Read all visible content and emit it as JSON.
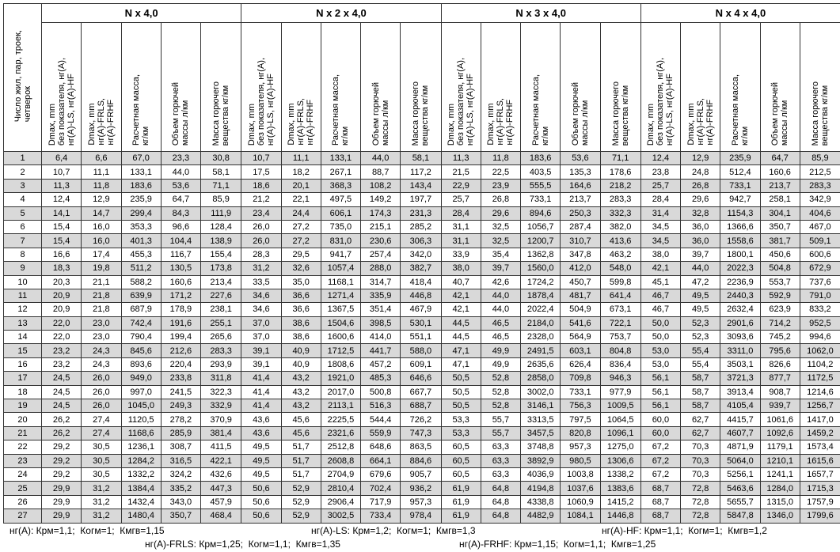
{
  "table": {
    "row_header": [
      "Число жил, пар, троек,",
      "четверок"
    ],
    "groups": [
      "N x 4,0",
      "N x 2 x 4,0",
      "N x 3 x 4,0",
      "N x 4 x 4,0"
    ],
    "columns": [
      [
        "Dmax, mm",
        "без показателя, нг(А),",
        "нг(А)-LS, нг(А)-HF"
      ],
      [
        "Dmax, mm",
        "нг(А)-FRLS,",
        "нг(А)-FRHF"
      ],
      [
        "Расчетная масса,",
        "кг/км"
      ],
      [
        "Объем горючей",
        "массы л/км"
      ],
      [
        "Масса горючего",
        "вещества кг/км"
      ]
    ],
    "rows": [
      [
        "1",
        "6,4",
        "6,6",
        "67,0",
        "23,3",
        "30,8",
        "10,7",
        "11,1",
        "133,1",
        "44,0",
        "58,1",
        "11,3",
        "11,8",
        "183,6",
        "53,6",
        "71,1",
        "12,4",
        "12,9",
        "235,9",
        "64,7",
        "85,9"
      ],
      [
        "2",
        "10,7",
        "11,1",
        "133,1",
        "44,0",
        "58,1",
        "17,5",
        "18,2",
        "267,1",
        "88,7",
        "117,2",
        "21,5",
        "22,5",
        "403,5",
        "135,3",
        "178,6",
        "23,8",
        "24,8",
        "512,4",
        "160,6",
        "212,5"
      ],
      [
        "3",
        "11,3",
        "11,8",
        "183,6",
        "53,6",
        "71,1",
        "18,6",
        "20,1",
        "368,3",
        "108,2",
        "143,4",
        "22,9",
        "23,9",
        "555,5",
        "164,6",
        "218,2",
        "25,7",
        "26,8",
        "733,1",
        "213,7",
        "283,3"
      ],
      [
        "4",
        "12,4",
        "12,9",
        "235,9",
        "64,7",
        "85,9",
        "21,2",
        "22,1",
        "497,5",
        "149,2",
        "197,7",
        "25,7",
        "26,8",
        "733,1",
        "213,7",
        "283,3",
        "28,4",
        "29,6",
        "942,7",
        "258,1",
        "342,9"
      ],
      [
        "5",
        "14,1",
        "14,7",
        "299,4",
        "84,3",
        "111,9",
        "23,4",
        "24,4",
        "606,1",
        "174,3",
        "231,3",
        "28,4",
        "29,6",
        "894,6",
        "250,3",
        "332,3",
        "31,4",
        "32,8",
        "1154,3",
        "304,1",
        "404,6"
      ],
      [
        "6",
        "15,4",
        "16,0",
        "353,3",
        "96,6",
        "128,4",
        "26,0",
        "27,2",
        "735,0",
        "215,1",
        "285,2",
        "31,1",
        "32,5",
        "1056,7",
        "287,4",
        "382,0",
        "34,5",
        "36,0",
        "1366,6",
        "350,7",
        "467,0"
      ],
      [
        "7",
        "15,4",
        "16,0",
        "401,3",
        "104,4",
        "138,9",
        "26,0",
        "27,2",
        "831,0",
        "230,6",
        "306,3",
        "31,1",
        "32,5",
        "1200,7",
        "310,7",
        "413,6",
        "34,5",
        "36,0",
        "1558,6",
        "381,7",
        "509,1"
      ],
      [
        "8",
        "16,6",
        "17,4",
        "455,3",
        "116,7",
        "155,4",
        "28,3",
        "29,5",
        "941,7",
        "257,4",
        "342,0",
        "33,9",
        "35,4",
        "1362,8",
        "347,8",
        "463,2",
        "38,0",
        "39,7",
        "1800,1",
        "450,6",
        "600,6"
      ],
      [
        "9",
        "18,3",
        "19,8",
        "511,2",
        "130,5",
        "173,8",
        "31,2",
        "32,6",
        "1057,4",
        "288,0",
        "382,7",
        "38,0",
        "39,7",
        "1560,0",
        "412,0",
        "548,0",
        "42,1",
        "44,0",
        "2022,3",
        "504,8",
        "672,9"
      ],
      [
        "10",
        "20,3",
        "21,1",
        "588,2",
        "160,6",
        "213,4",
        "33,5",
        "35,0",
        "1168,1",
        "314,7",
        "418,4",
        "40,7",
        "42,6",
        "1724,2",
        "450,7",
        "599,8",
        "45,1",
        "47,2",
        "2236,9",
        "553,7",
        "737,6"
      ],
      [
        "11",
        "20,9",
        "21,8",
        "639,9",
        "171,2",
        "227,6",
        "34,6",
        "36,6",
        "1271,4",
        "335,9",
        "446,8",
        "42,1",
        "44,0",
        "1878,4",
        "481,7",
        "641,4",
        "46,7",
        "49,5",
        "2440,3",
        "592,9",
        "791,0"
      ],
      [
        "12",
        "20,9",
        "21,8",
        "687,9",
        "178,9",
        "238,1",
        "34,6",
        "36,6",
        "1367,5",
        "351,4",
        "467,9",
        "42,1",
        "44,0",
        "2022,4",
        "504,9",
        "673,1",
        "46,7",
        "49,5",
        "2632,4",
        "623,9",
        "833,2"
      ],
      [
        "13",
        "22,0",
        "23,0",
        "742,4",
        "191,6",
        "255,1",
        "37,0",
        "38,6",
        "1504,6",
        "398,5",
        "530,1",
        "44,5",
        "46,5",
        "2184,0",
        "541,6",
        "722,1",
        "50,0",
        "52,3",
        "2901,6",
        "714,2",
        "952,5"
      ],
      [
        "14",
        "22,0",
        "23,0",
        "790,4",
        "199,4",
        "265,6",
        "37,0",
        "38,6",
        "1600,6",
        "414,0",
        "551,1",
        "44,5",
        "46,5",
        "2328,0",
        "564,9",
        "753,7",
        "50,0",
        "52,3",
        "3093,6",
        "745,2",
        "994,6"
      ],
      [
        "15",
        "23,2",
        "24,3",
        "845,6",
        "212,6",
        "283,3",
        "39,1",
        "40,9",
        "1712,5",
        "441,7",
        "588,0",
        "47,1",
        "49,9",
        "2491,5",
        "603,1",
        "804,8",
        "53,0",
        "55,4",
        "3311,0",
        "795,6",
        "1062,0"
      ],
      [
        "16",
        "23,2",
        "24,3",
        "893,6",
        "220,4",
        "293,9",
        "39,1",
        "40,9",
        "1808,6",
        "457,2",
        "609,1",
        "47,1",
        "49,9",
        "2635,6",
        "626,4",
        "836,4",
        "53,0",
        "55,4",
        "3503,1",
        "826,6",
        "1104,2"
      ],
      [
        "17",
        "24,5",
        "26,0",
        "949,0",
        "233,8",
        "311,8",
        "41,4",
        "43,2",
        "1921,0",
        "485,3",
        "646,6",
        "50,5",
        "52,8",
        "2858,0",
        "709,8",
        "946,3",
        "56,1",
        "58,7",
        "3721,3",
        "877,7",
        "1172,5"
      ],
      [
        "18",
        "24,5",
        "26,0",
        "997,0",
        "241,5",
        "322,3",
        "41,4",
        "43,2",
        "2017,0",
        "500,8",
        "667,7",
        "50,5",
        "52,8",
        "3002,0",
        "733,1",
        "977,9",
        "56,1",
        "58,7",
        "3913,4",
        "908,7",
        "1214,6"
      ],
      [
        "19",
        "24,5",
        "26,0",
        "1045,0",
        "249,3",
        "332,9",
        "41,4",
        "43,2",
        "2113,1",
        "516,3",
        "688,7",
        "50,5",
        "52,8",
        "3146,1",
        "756,3",
        "1009,5",
        "56,1",
        "58,7",
        "4105,4",
        "939,7",
        "1256,7"
      ],
      [
        "20",
        "26,2",
        "27,4",
        "1120,5",
        "278,2",
        "370,9",
        "43,6",
        "45,6",
        "2225,5",
        "544,4",
        "726,2",
        "53,3",
        "55,7",
        "3313,5",
        "797,5",
        "1064,5",
        "60,0",
        "62,7",
        "4415,7",
        "1061,6",
        "1417,0"
      ],
      [
        "21",
        "26,2",
        "27,4",
        "1168,6",
        "285,9",
        "381,4",
        "43,6",
        "45,6",
        "2321,6",
        "559,9",
        "747,3",
        "53,3",
        "55,7",
        "3457,5",
        "820,8",
        "1096,1",
        "60,0",
        "62,7",
        "4607,7",
        "1092,6",
        "1459,2"
      ],
      [
        "22",
        "29,2",
        "30,5",
        "1236,1",
        "308,7",
        "411,5",
        "49,5",
        "51,7",
        "2512,8",
        "648,6",
        "863,5",
        "60,5",
        "63,3",
        "3748,8",
        "957,3",
        "1275,0",
        "67,2",
        "70,3",
        "4871,9",
        "1179,1",
        "1573,4"
      ],
      [
        "23",
        "29,2",
        "30,5",
        "1284,2",
        "316,5",
        "422,1",
        "49,5",
        "51,7",
        "2608,8",
        "664,1",
        "884,6",
        "60,5",
        "63,3",
        "3892,9",
        "980,5",
        "1306,6",
        "67,2",
        "70,3",
        "5064,0",
        "1210,1",
        "1615,6"
      ],
      [
        "24",
        "29,2",
        "30,5",
        "1332,2",
        "324,2",
        "432,6",
        "49,5",
        "51,7",
        "2704,9",
        "679,6",
        "905,7",
        "60,5",
        "63,3",
        "4036,9",
        "1003,8",
        "1338,2",
        "67,2",
        "70,3",
        "5256,1",
        "1241,1",
        "1657,7"
      ],
      [
        "25",
        "29,9",
        "31,2",
        "1384,4",
        "335,2",
        "447,3",
        "50,6",
        "52,9",
        "2810,4",
        "702,4",
        "936,2",
        "61,9",
        "64,8",
        "4194,8",
        "1037,6",
        "1383,6",
        "68,7",
        "72,8",
        "5463,6",
        "1284,0",
        "1715,3"
      ],
      [
        "26",
        "29,9",
        "31,2",
        "1432,4",
        "343,0",
        "457,9",
        "50,6",
        "52,9",
        "2906,4",
        "717,9",
        "957,3",
        "61,9",
        "64,8",
        "4338,8",
        "1060,9",
        "1415,2",
        "68,7",
        "72,8",
        "5655,7",
        "1315,0",
        "1757,9"
      ],
      [
        "27",
        "29,9",
        "31,2",
        "1480,4",
        "350,7",
        "468,4",
        "50,6",
        "52,9",
        "3002,5",
        "733,4",
        "978,4",
        "61,9",
        "64,8",
        "4482,9",
        "1084,1",
        "1446,8",
        "68,7",
        "72,8",
        "5847,8",
        "1346,0",
        "1799,6"
      ]
    ]
  },
  "notes": [
    [
      "нг(А): Крм=1,1;  Когм=1;  Кмгв=1,15",
      "нг(А)-LS: Крм=1,2;  Когм=1;  Кмгв=1,3",
      "нг(А)-HF: Крм=1,1;  Когм=1;  Кмгв=1,2"
    ],
    [
      "нг(А)-FRLS: Крм=1,25;  Когм=1,1;  Кмгв=1,35",
      "нг(А)-FRHF: Крм=1,15;  Когм=1,1;  Кмгв=1,25"
    ]
  ]
}
